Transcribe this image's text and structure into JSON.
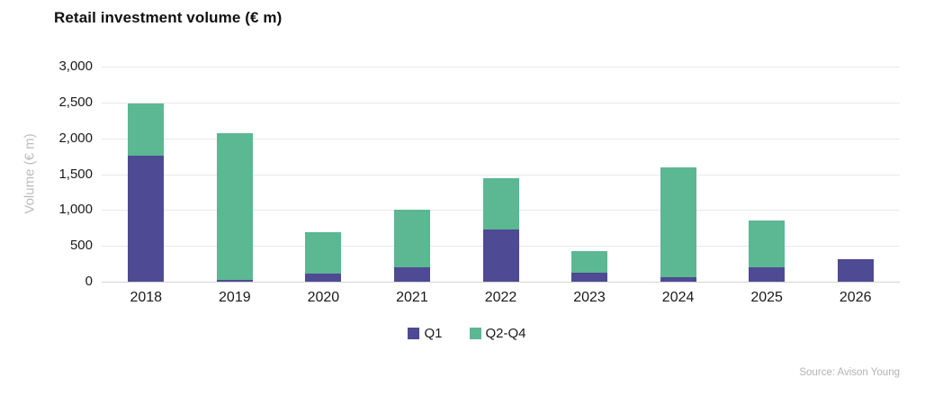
{
  "chart_data": {
    "type": "bar",
    "stacked": true,
    "title": "Retail investment volume (€ m)",
    "ylabel": "Volume (€ m)",
    "xlabel": "",
    "categories": [
      "2018",
      "2019",
      "2020",
      "2021",
      "2022",
      "2023",
      "2024",
      "2025",
      "2026"
    ],
    "series": [
      {
        "name": "Q1",
        "color": "#4e4a93",
        "values": [
          1760,
          30,
          110,
          200,
          725,
          130,
          60,
          200,
          315
        ]
      },
      {
        "name": "Q2-Q4",
        "color": "#5cb793",
        "values": [
          720,
          2040,
          575,
          800,
          725,
          300,
          1540,
          660,
          0
        ]
      }
    ],
    "totals": [
      2480,
      2070,
      685,
      1000,
      1450,
      430,
      1600,
      860,
      315
    ],
    "ylim": [
      0,
      3000
    ],
    "ytick_values": [
      0,
      500,
      1000,
      1500,
      2000,
      2500,
      3000
    ],
    "ytick_labels": [
      "0",
      "500",
      "1,000",
      "1,500",
      "2,000",
      "2,500",
      "3,000"
    ],
    "grid": true,
    "legend_position": "bottom"
  },
  "footer": {
    "source": "Source: Avison Young"
  }
}
